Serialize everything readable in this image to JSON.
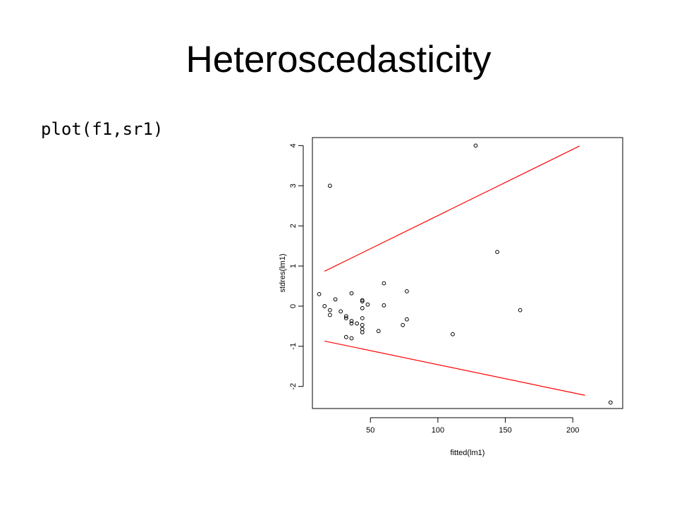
{
  "slide": {
    "title": "Heteroscedasticity",
    "code": "plot(f1,sr1)"
  },
  "chart_data": {
    "type": "scatter",
    "xlabel": "fitted(lm1)",
    "ylabel": "stdres(lm1)",
    "xlim": [
      7,
      237
    ],
    "ylim": [
      -2.55,
      4.2
    ],
    "xticks": [
      50,
      100,
      150,
      200
    ],
    "yticks": [
      -2,
      -1,
      0,
      1,
      2,
      3,
      4
    ],
    "grid": false,
    "points": [
      {
        "x": 12,
        "y": 0.3
      },
      {
        "x": 16,
        "y": 0.0
      },
      {
        "x": 20,
        "y": -0.1
      },
      {
        "x": 20,
        "y": -0.22
      },
      {
        "x": 20,
        "y": 3.0
      },
      {
        "x": 24,
        "y": 0.17
      },
      {
        "x": 28,
        "y": -0.13
      },
      {
        "x": 32,
        "y": -0.25
      },
      {
        "x": 32,
        "y": -0.3
      },
      {
        "x": 32,
        "y": -0.77
      },
      {
        "x": 36,
        "y": 0.32
      },
      {
        "x": 36,
        "y": -0.37
      },
      {
        "x": 36,
        "y": -0.43
      },
      {
        "x": 36,
        "y": -0.8
      },
      {
        "x": 40,
        "y": -0.43
      },
      {
        "x": 44,
        "y": 0.15
      },
      {
        "x": 44,
        "y": 0.12
      },
      {
        "x": 44,
        "y": -0.05
      },
      {
        "x": 44,
        "y": -0.3
      },
      {
        "x": 44,
        "y": -0.47
      },
      {
        "x": 44,
        "y": -0.57
      },
      {
        "x": 44,
        "y": -0.65
      },
      {
        "x": 48,
        "y": 0.04
      },
      {
        "x": 56,
        "y": -0.62
      },
      {
        "x": 60,
        "y": 0.57
      },
      {
        "x": 60,
        "y": 0.02
      },
      {
        "x": 74,
        "y": -0.47
      },
      {
        "x": 77,
        "y": 0.37
      },
      {
        "x": 77,
        "y": -0.33
      },
      {
        "x": 111,
        "y": -0.7
      },
      {
        "x": 128,
        "y": 4.0
      },
      {
        "x": 144,
        "y": 1.35
      },
      {
        "x": 161,
        "y": -0.1
      },
      {
        "x": 228,
        "y": -2.4
      }
    ],
    "lines": [
      {
        "color": "#ff0000",
        "x": [
          16,
          205
        ],
        "y": [
          0.87,
          3.99
        ]
      },
      {
        "color": "#ff0000",
        "x": [
          16,
          209
        ],
        "y": [
          -0.87,
          -2.22
        ]
      }
    ],
    "colors": {
      "points": "#000000",
      "bounds": "#ff0000"
    }
  }
}
